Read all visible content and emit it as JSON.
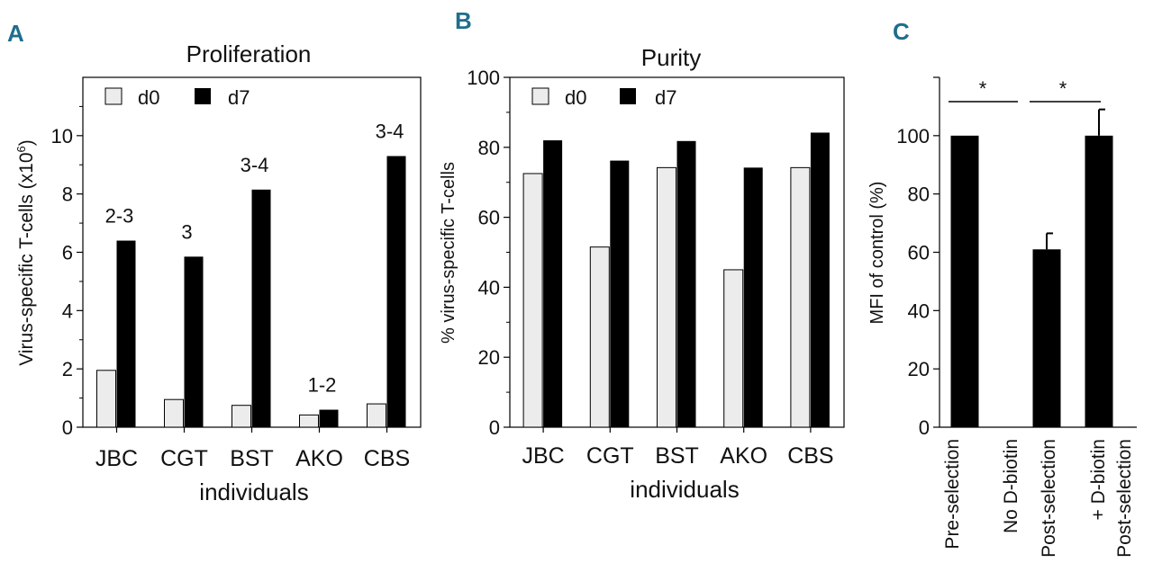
{
  "colors": {
    "d0": "#ececec",
    "d7": "#000000",
    "panel_label": "#1f6e8c"
  },
  "chart_data": [
    {
      "panel_label": "A",
      "type": "bar",
      "title": "Proliferation",
      "xlabel": "individuals",
      "ylabel_main": "Virus-specific T-cells (x10",
      "ylabel_exp": "6",
      "ylabel_close": ")",
      "ylim": [
        0,
        12
      ],
      "yticks": [
        "0",
        "2",
        "4",
        "6",
        "8",
        "10"
      ],
      "categories": [
        "JBC",
        "CGT",
        "BST",
        "AKO",
        "CBS"
      ],
      "series": [
        {
          "name": "d0",
          "values": [
            1.95,
            0.95,
            0.75,
            0.42,
            0.8
          ]
        },
        {
          "name": "d7",
          "values": [
            6.4,
            5.85,
            8.15,
            0.6,
            9.3
          ]
        }
      ],
      "legend": [
        "d0",
        "d7"
      ],
      "annotations": [
        "2-3",
        "3",
        "3-4",
        "1-2",
        "3-4"
      ]
    },
    {
      "panel_label": "B",
      "type": "bar",
      "title": "Purity",
      "xlabel": "individuals",
      "ylabel": "% virus-specific T-cells",
      "ylim": [
        0,
        100
      ],
      "yticks": [
        "0",
        "20",
        "40",
        "60",
        "80",
        "100"
      ],
      "categories": [
        "JBC",
        "CGT",
        "BST",
        "AKO",
        "CBS"
      ],
      "series": [
        {
          "name": "d0",
          "values": [
            72.5,
            51.5,
            74.2,
            45,
            74.2
          ]
        },
        {
          "name": "d7",
          "values": [
            82,
            76.2,
            81.8,
            74.2,
            84.2
          ]
        }
      ],
      "legend": [
        "d0",
        "d7"
      ]
    },
    {
      "panel_label": "C",
      "type": "bar",
      "ylabel": "MFI of control (%)",
      "ylim": [
        0,
        120
      ],
      "yticks": [
        "0",
        "20",
        "40",
        "60",
        "80",
        "100"
      ],
      "categories": [
        [
          "Pre-selection"
        ],
        [
          "No D-biotin",
          "Post-selection"
        ],
        [
          "+ D-biotin",
          "Post-selection"
        ]
      ],
      "values": [
        100,
        61,
        100
      ],
      "errors": [
        0,
        5.5,
        9
      ],
      "significance": [
        "*",
        "*"
      ]
    }
  ]
}
